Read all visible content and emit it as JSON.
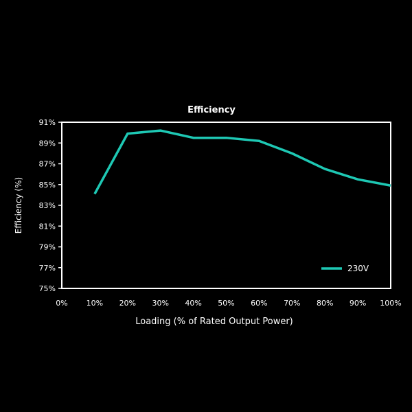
{
  "chart_data": {
    "type": "line",
    "title": "Efficiency",
    "xlabel": "Loading (% of Rated Output Power)",
    "ylabel": "Efficiency (%)",
    "x_ticks": [
      "0%",
      "10%",
      "20%",
      "30%",
      "40%",
      "50%",
      "60%",
      "70%",
      "80%",
      "90%",
      "100%"
    ],
    "y_ticks": [
      "75%",
      "77%",
      "79%",
      "81%",
      "83%",
      "85%",
      "87%",
      "89%",
      "91%"
    ],
    "xlim": [
      0,
      100
    ],
    "ylim": [
      75,
      91
    ],
    "grid": false,
    "legend_position": "bottom-right",
    "series": [
      {
        "name": "230V",
        "color": "#1ec8b4",
        "x": [
          10,
          20,
          30,
          40,
          50,
          60,
          70,
          80,
          90,
          100
        ],
        "y": [
          84.1,
          89.9,
          90.2,
          89.5,
          89.5,
          89.2,
          88.0,
          86.5,
          85.5,
          84.9
        ]
      }
    ]
  }
}
